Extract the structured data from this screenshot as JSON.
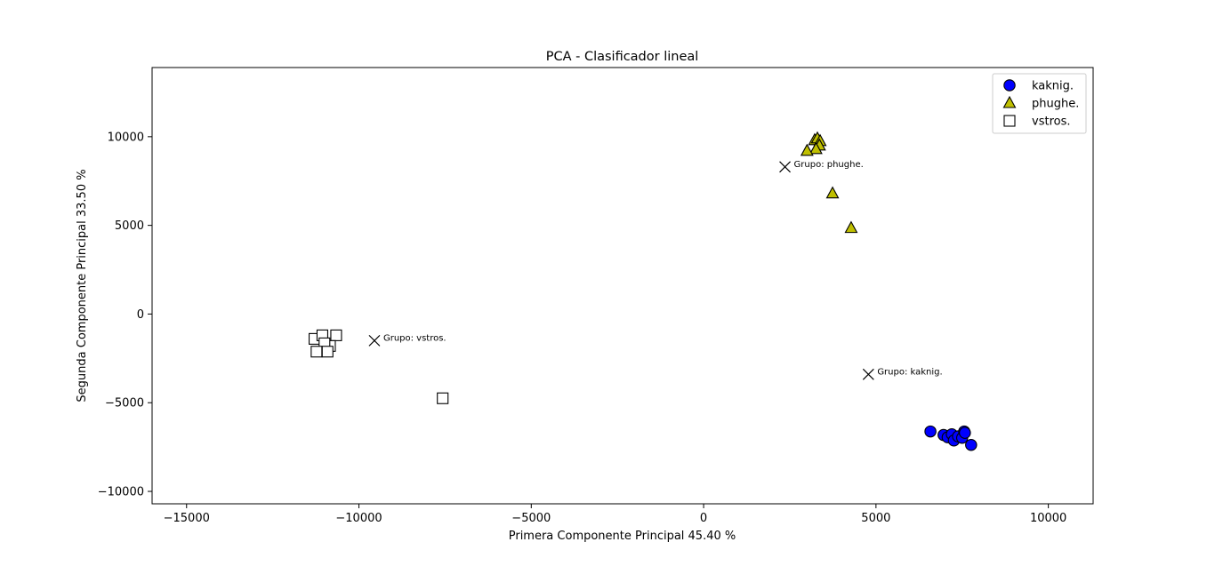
{
  "chart_data": {
    "type": "scatter",
    "title": "PCA - Clasificador lineal",
    "xlabel": "Primera Componente Principal 45.40 %",
    "ylabel": "Segunda Componente Principal 33.50 %",
    "xlim": [
      -16000,
      11300
    ],
    "ylim": [
      -10700,
      13900
    ],
    "xticks": [
      -15000,
      -10000,
      -5000,
      0,
      5000,
      10000
    ],
    "xtick_labels": [
      "−15000",
      "−10000",
      "−5000",
      "0",
      "5000",
      "10000"
    ],
    "yticks": [
      -10000,
      -5000,
      0,
      5000,
      10000
    ],
    "ytick_labels": [
      "−10000",
      "−5000",
      "0",
      "5000",
      "10000"
    ],
    "grid": false,
    "legend_position": "top-right",
    "series": [
      {
        "name": "kaknig.",
        "marker": "circle",
        "color": "#0000ff",
        "points": [
          [
            6580,
            -6620
          ],
          [
            6960,
            -6820
          ],
          [
            7080,
            -6950
          ],
          [
            7200,
            -6780
          ],
          [
            7260,
            -7130
          ],
          [
            7380,
            -6900
          ],
          [
            7500,
            -6980
          ],
          [
            7560,
            -6620
          ],
          [
            7580,
            -6700
          ],
          [
            7760,
            -7380
          ]
        ]
      },
      {
        "name": "phughe.",
        "marker": "triangle",
        "color": "#bfbf00",
        "points": [
          [
            3220,
            9800
          ],
          [
            3300,
            9900
          ],
          [
            3380,
            9750
          ],
          [
            3360,
            9500
          ],
          [
            3260,
            9300
          ],
          [
            3000,
            9200
          ],
          [
            3740,
            6800
          ],
          [
            4280,
            4850
          ]
        ]
      },
      {
        "name": "vstros.",
        "marker": "square",
        "color": "#ffffff",
        "points": [
          [
            -11290,
            -1400
          ],
          [
            -11060,
            -1200
          ],
          [
            -10660,
            -1200
          ],
          [
            -10840,
            -1800
          ],
          [
            -11000,
            -1650
          ],
          [
            -11230,
            -2120
          ],
          [
            -10910,
            -2120
          ],
          [
            -7570,
            -4750
          ]
        ]
      }
    ],
    "centroids": [
      {
        "label": "Grupo: phughe.",
        "x": 2360,
        "y": 8300
      },
      {
        "label": "Grupo: vstros.",
        "x": -9550,
        "y": -1500
      },
      {
        "label": "Grupo: kaknig.",
        "x": 4780,
        "y": -3400
      }
    ]
  }
}
